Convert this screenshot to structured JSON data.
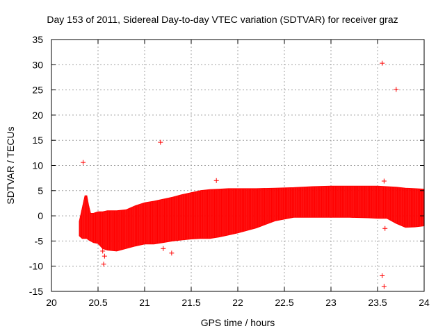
{
  "chart_data": {
    "type": "scatter",
    "title": "Day 153 of 2011, Sidereal Day-to-day VTEC variation (SDTVAR) for receiver graz",
    "xlabel": "GPS time / hours",
    "ylabel": "SDTVAR / TECUs",
    "xlim": [
      20,
      24
    ],
    "ylim": [
      -15,
      35
    ],
    "xticks": [
      20,
      20.5,
      21,
      21.5,
      22,
      22.5,
      23,
      23.5,
      24
    ],
    "xtick_labels": [
      "20",
      "20.5",
      "21",
      "21.5",
      "22",
      "22.5",
      "23",
      "23.5",
      "24"
    ],
    "yticks": [
      -15,
      -10,
      -5,
      0,
      5,
      10,
      15,
      20,
      25,
      30,
      35
    ],
    "ytick_labels": [
      "-15",
      "-10",
      "-5",
      "0",
      "5",
      "10",
      "15",
      "20",
      "25",
      "30",
      "35"
    ],
    "grid": true,
    "marker": "+",
    "color": "#ff0000",
    "envelope": {
      "x": [
        20.3,
        20.33,
        20.36,
        20.38,
        20.4,
        20.42,
        20.45,
        20.5,
        20.55,
        20.6,
        20.7,
        20.8,
        20.9,
        21.0,
        21.1,
        21.2,
        21.3,
        21.4,
        21.5,
        21.6,
        21.7,
        21.8,
        21.9,
        22.0,
        22.2,
        22.4,
        22.6,
        22.8,
        23.0,
        23.2,
        23.4,
        23.5,
        23.6,
        23.7,
        23.8,
        23.9,
        24.0
      ],
      "upper": [
        -1.0,
        1.5,
        4.0,
        4.0,
        2.0,
        0.5,
        0.5,
        0.8,
        0.8,
        1.0,
        1.0,
        1.2,
        2.0,
        2.6,
        2.9,
        3.3,
        3.7,
        4.2,
        4.6,
        5.0,
        5.2,
        5.3,
        5.4,
        5.4,
        5.4,
        5.5,
        5.6,
        5.8,
        5.9,
        5.9,
        5.9,
        5.9,
        5.8,
        5.7,
        5.5,
        5.4,
        5.3
      ],
      "lower": [
        -4.0,
        -4.5,
        -4.5,
        -4.5,
        -4.8,
        -5.0,
        -5.3,
        -5.5,
        -6.5,
        -6.8,
        -7.0,
        -6.5,
        -6.0,
        -5.6,
        -5.6,
        -5.3,
        -5.0,
        -4.8,
        -4.6,
        -4.5,
        -4.5,
        -4.2,
        -3.8,
        -3.4,
        -2.4,
        -1.0,
        -0.3,
        -0.3,
        -0.3,
        -0.3,
        -0.4,
        -0.5,
        -0.5,
        -1.5,
        -2.3,
        -2.2,
        -2.0
      ]
    },
    "outliers": [
      {
        "x": 20.34,
        "y": 10.6
      },
      {
        "x": 21.17,
        "y": 14.6
      },
      {
        "x": 21.77,
        "y": 7.0
      },
      {
        "x": 20.55,
        "y": -7.0
      },
      {
        "x": 20.57,
        "y": -8.0
      },
      {
        "x": 20.56,
        "y": -9.6
      },
      {
        "x": 21.2,
        "y": -6.5
      },
      {
        "x": 21.29,
        "y": -7.4
      },
      {
        "x": 23.55,
        "y": 30.3
      },
      {
        "x": 23.7,
        "y": 25.1
      },
      {
        "x": 23.57,
        "y": 6.9
      },
      {
        "x": 23.58,
        "y": -2.5
      },
      {
        "x": 23.55,
        "y": -11.9
      },
      {
        "x": 23.57,
        "y": -14.0
      }
    ]
  }
}
